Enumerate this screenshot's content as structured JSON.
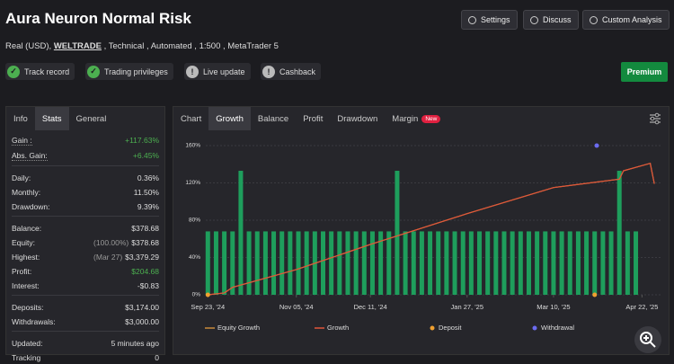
{
  "header": {
    "title": "Aura Neuron Normal Risk",
    "buttons": [
      "Settings",
      "Discuss",
      "Custom Analysis"
    ],
    "subtitle": {
      "before": "Real (USD),",
      "link": "WELTRADE",
      "after": ", Technical , Automated , 1:500 , MetaTrader 5"
    },
    "badges": [
      "Track record",
      "Trading privileges",
      "Live update",
      "Cashback"
    ],
    "premium": "Premium"
  },
  "stats_panel": {
    "tabs": [
      "Info",
      "Stats",
      "General"
    ],
    "groups": [
      [
        {
          "label": "Gain :",
          "value": "+117.63%",
          "color": "#4caf50"
        },
        {
          "label": "Abs. Gain:",
          "value": "+6.45%",
          "color": "#4caf50"
        }
      ],
      [
        {
          "label": "Daily:",
          "value": "0.36%"
        },
        {
          "label": "Monthly:",
          "value": "11.50%"
        },
        {
          "label": "Drawdown:",
          "value": "9.39%"
        }
      ],
      [
        {
          "label": "Balance:",
          "value": "$378.68"
        },
        {
          "label": "Equity:",
          "note": "(100.00%)",
          "value": "$378.68"
        },
        {
          "label": "Highest:",
          "note": "(Mar 27)",
          "value": "$3,379.29"
        },
        {
          "label": "Profit:",
          "value": "$204.68",
          "color": "#4caf50"
        },
        {
          "label": "Interest:",
          "value": "-$0.83"
        }
      ],
      [
        {
          "label": "Deposits:",
          "value": "$3,174.00"
        },
        {
          "label": "Withdrawals:",
          "value": "$3,000.00"
        }
      ],
      [
        {
          "label": "Updated:",
          "value": "5 minutes ago"
        },
        {
          "label": "Tracking",
          "value": "0"
        }
      ]
    ]
  },
  "chart_panel": {
    "tabs": [
      "Chart",
      "Growth",
      "Balance",
      "Profit",
      "Drawdown",
      "Margin"
    ],
    "new_badge": "New"
  },
  "chart_data": {
    "type": "line",
    "xlim": [
      "2024-09-22",
      "2025-05-01"
    ],
    "xticks": [
      {
        "value": "2024-09-23",
        "label": "Sep 23, '24"
      },
      {
        "value": "2024-11-05",
        "label": "Nov 05, '24"
      },
      {
        "value": "2024-12-11",
        "label": "Dec 11, '24"
      },
      {
        "value": "2025-01-27",
        "label": "Jan 27, '25"
      },
      {
        "value": "2025-03-10",
        "label": "Mar 10, '25"
      },
      {
        "value": "2025-04-22",
        "label": "Apr 22, '25"
      }
    ],
    "ylim": [
      0,
      160
    ],
    "yticks": [
      {
        "value": 0,
        "label": "0%"
      },
      {
        "value": 40,
        "label": "40%"
      },
      {
        "value": 80,
        "label": "80%"
      },
      {
        "value": 120,
        "label": "120%"
      },
      {
        "value": 160,
        "label": "160%"
      }
    ],
    "bars": {
      "color": "#1e9e5c",
      "x": [
        "2024-09-23",
        "2024-09-27",
        "2024-10-01",
        "2024-10-05",
        "2024-10-09",
        "2024-10-13",
        "2024-10-17",
        "2024-10-21",
        "2024-10-25",
        "2024-10-29",
        "2024-11-02",
        "2024-11-06",
        "2024-11-10",
        "2024-11-14",
        "2024-11-18",
        "2024-11-22",
        "2024-11-26",
        "2024-11-30",
        "2024-12-04",
        "2024-12-08",
        "2024-12-12",
        "2024-12-16",
        "2024-12-20",
        "2024-12-24",
        "2024-12-28",
        "2025-01-01",
        "2025-01-05",
        "2025-01-09",
        "2025-01-13",
        "2025-01-17",
        "2025-01-21",
        "2025-01-25",
        "2025-01-29",
        "2025-02-02",
        "2025-02-06",
        "2025-02-10",
        "2025-02-14",
        "2025-02-18",
        "2025-02-22",
        "2025-02-26",
        "2025-03-02",
        "2025-03-06",
        "2025-03-10",
        "2025-03-14",
        "2025-03-18",
        "2025-03-22",
        "2025-03-26",
        "2025-03-30",
        "2025-04-03",
        "2025-04-07",
        "2025-04-11",
        "2025-04-15",
        "2025-04-19"
      ],
      "values": [
        68,
        68,
        68,
        68,
        133,
        68,
        68,
        68,
        68,
        68,
        68,
        68,
        68,
        68,
        68,
        68,
        68,
        68,
        68,
        68,
        68,
        68,
        68,
        133,
        68,
        68,
        68,
        68,
        68,
        68,
        68,
        68,
        68,
        68,
        68,
        68,
        68,
        68,
        68,
        68,
        68,
        68,
        68,
        68,
        68,
        68,
        68,
        68,
        68,
        68,
        133,
        68,
        68
      ]
    },
    "series": [
      {
        "name": "Equity Growth",
        "color": "#c98a3a",
        "kind": "line",
        "x": [
          "2024-09-23",
          "2024-10-01",
          "2024-10-05",
          "2024-11-05",
          "2024-12-11",
          "2025-01-27",
          "2025-03-10",
          "2025-04-11",
          "2025-04-13",
          "2025-04-26",
          "2025-04-28"
        ],
        "values": [
          0,
          2,
          8,
          27,
          54,
          87,
          115,
          124,
          133,
          141,
          119
        ]
      },
      {
        "name": "Growth",
        "color": "#e0553a",
        "kind": "line",
        "x": [
          "2024-09-23",
          "2024-10-01",
          "2024-10-05",
          "2024-11-05",
          "2024-12-11",
          "2025-01-27",
          "2025-03-10",
          "2025-04-11",
          "2025-04-13",
          "2025-04-26",
          "2025-04-28"
        ],
        "values": [
          0,
          2,
          8,
          27,
          54,
          87,
          115,
          124,
          133,
          141,
          119
        ]
      },
      {
        "name": "Deposit",
        "color": "#f0a030",
        "kind": "point",
        "x": [
          "2024-09-23",
          "2025-03-30"
        ],
        "values": [
          0,
          0
        ]
      },
      {
        "name": "Withdrawal",
        "color": "#6b6bf0",
        "kind": "point",
        "x": [
          "2025-03-31"
        ],
        "values": [
          160
        ]
      }
    ]
  }
}
